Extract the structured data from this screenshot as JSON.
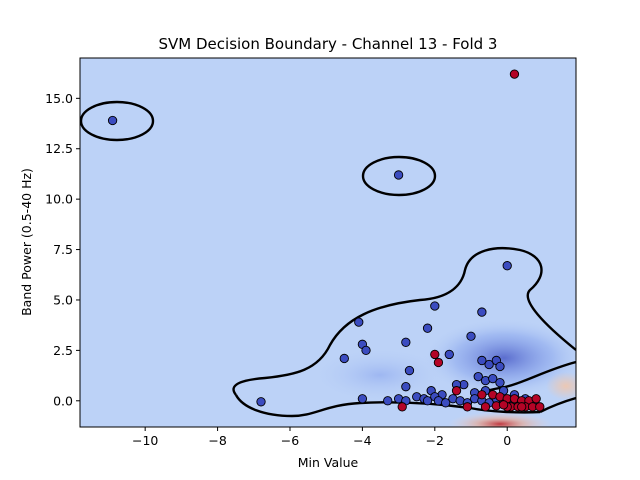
{
  "chart_data": {
    "type": "scatter",
    "title": "SVM Decision Boundary - Channel 13 - Fold 3",
    "xlabel": "Min Value",
    "ylabel": "Band Power (0.5-40 Hz)",
    "xlim": [
      -11.8,
      1.9
    ],
    "ylim": [
      -1.3,
      17.0
    ],
    "xticks": [
      -10,
      -8,
      -6,
      -4,
      -2,
      0
    ],
    "xtick_labels": [
      "−10",
      "−8",
      "−6",
      "−4",
      "−2",
      "0"
    ],
    "yticks": [
      0.0,
      2.5,
      5.0,
      7.5,
      10.0,
      12.5,
      15.0
    ],
    "ytick_labels": [
      "0.0",
      "2.5",
      "5.0",
      "7.5",
      "10.0",
      "12.5",
      "15.0"
    ],
    "background_color": "#bcd2f7",
    "class_colors": {
      "class_0": "#3b4cc0",
      "class_1": "#b40426"
    },
    "boundary_color": "#000000",
    "grid": false,
    "series": [
      {
        "points": [
          [
            -10.9,
            13.9
          ],
          [
            -3.0,
            11.2
          ],
          [
            0.0,
            6.7
          ],
          [
            -0.7,
            4.4
          ],
          [
            -2.0,
            4.7
          ],
          [
            -2.2,
            3.6
          ],
          [
            -4.1,
            3.9
          ],
          [
            -4.0,
            2.8
          ],
          [
            -3.9,
            2.5
          ],
          [
            -4.5,
            2.1
          ],
          [
            -2.8,
            2.9
          ],
          [
            -1.0,
            3.2
          ],
          [
            -1.6,
            2.3
          ],
          [
            -0.7,
            2.0
          ],
          [
            -0.3,
            2.0
          ],
          [
            -0.5,
            1.8
          ],
          [
            -0.2,
            1.7
          ],
          [
            -2.7,
            1.5
          ],
          [
            -0.8,
            1.2
          ],
          [
            -0.6,
            1.0
          ],
          [
            -0.4,
            1.1
          ],
          [
            -0.2,
            0.9
          ],
          [
            -1.2,
            0.8
          ],
          [
            -1.4,
            0.8
          ],
          [
            -2.8,
            0.7
          ],
          [
            -2.1,
            0.5
          ],
          [
            -1.8,
            0.3
          ],
          [
            -0.9,
            0.4
          ],
          [
            -0.6,
            0.5
          ],
          [
            -0.1,
            0.5
          ],
          [
            0.2,
            0.3
          ],
          [
            -6.8,
            -0.05
          ],
          [
            -4.0,
            0.1
          ],
          [
            -3.3,
            0.0
          ],
          [
            -3.0,
            0.1
          ],
          [
            -2.8,
            0.0
          ],
          [
            -2.5,
            0.2
          ],
          [
            -2.3,
            0.1
          ],
          [
            -2.2,
            0.0
          ],
          [
            -2.0,
            0.2
          ],
          [
            -1.9,
            0.0
          ],
          [
            -1.7,
            -0.1
          ],
          [
            -1.5,
            0.1
          ],
          [
            -1.3,
            0.0
          ],
          [
            -1.1,
            -0.1
          ],
          [
            -0.9,
            0.1
          ],
          [
            -0.7,
            0.0
          ],
          [
            -0.5,
            -0.1
          ],
          [
            -0.3,
            0.1
          ],
          [
            -0.1,
            0.0
          ],
          [
            0.1,
            -0.1
          ],
          [
            0.3,
            0.0
          ],
          [
            0.5,
            0.1
          ],
          [
            0.7,
            -0.1
          ]
        ]
      },
      {
        "points": [
          [
            0.2,
            16.2
          ],
          [
            -2.0,
            2.3
          ],
          [
            -1.9,
            1.9
          ],
          [
            -1.4,
            0.5
          ],
          [
            -0.7,
            0.3
          ],
          [
            -0.4,
            0.3
          ],
          [
            -0.2,
            0.2
          ],
          [
            0.0,
            0.1
          ],
          [
            0.2,
            0.1
          ],
          [
            0.4,
            0.0
          ],
          [
            0.6,
            0.0
          ],
          [
            0.8,
            0.1
          ],
          [
            -2.9,
            -0.3
          ],
          [
            -1.1,
            -0.3
          ],
          [
            -0.6,
            -0.3
          ],
          [
            -0.3,
            -0.25
          ],
          [
            0.1,
            -0.3
          ],
          [
            0.3,
            -0.3
          ],
          [
            0.5,
            -0.3
          ],
          [
            0.7,
            -0.3
          ],
          [
            0.9,
            -0.3
          ],
          [
            0.0,
            -0.3
          ],
          [
            0.4,
            -0.3
          ],
          [
            -0.1,
            -0.2
          ]
        ]
      }
    ]
  }
}
